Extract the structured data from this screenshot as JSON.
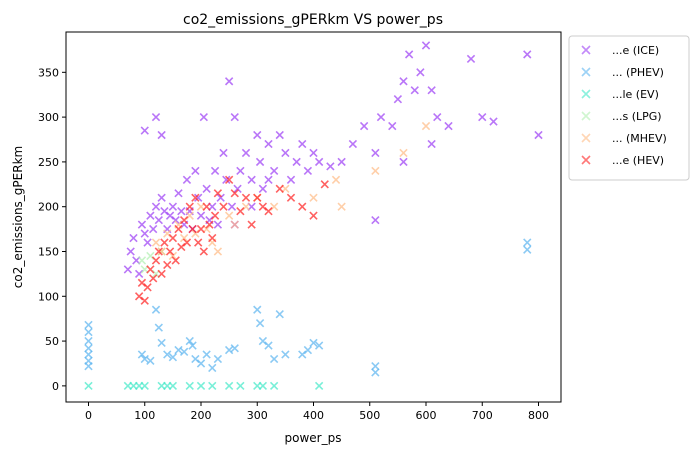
{
  "chart_data": {
    "type": "scatter",
    "title": "co2_emissions_gPERkm  VS  power_ps",
    "xlabel": "power_ps",
    "ylabel": "co2_emissions_gPERkm",
    "xlim": [
      -40,
      840
    ],
    "ylim": [
      -18,
      395
    ],
    "xticks": [
      0,
      100,
      200,
      300,
      400,
      500,
      600,
      700,
      800
    ],
    "yticks": [
      0,
      50,
      100,
      150,
      200,
      250,
      300,
      350
    ],
    "grid": false,
    "legend_position": "outside-right",
    "marker": "x",
    "series": [
      {
        "name": "...e (ICE)",
        "color": "#9b3cf5",
        "points": [
          [
            70,
            130
          ],
          [
            75,
            150
          ],
          [
            80,
            165
          ],
          [
            85,
            140
          ],
          [
            90,
            125
          ],
          [
            95,
            180
          ],
          [
            100,
            170
          ],
          [
            105,
            160
          ],
          [
            110,
            190
          ],
          [
            115,
            175
          ],
          [
            120,
            200
          ],
          [
            125,
            185
          ],
          [
            130,
            210
          ],
          [
            135,
            195
          ],
          [
            140,
            175
          ],
          [
            145,
            190
          ],
          [
            150,
            200
          ],
          [
            155,
            185
          ],
          [
            160,
            215
          ],
          [
            165,
            195
          ],
          [
            170,
            180
          ],
          [
            175,
            230
          ],
          [
            180,
            195
          ],
          [
            185,
            175
          ],
          [
            190,
            240
          ],
          [
            195,
            210
          ],
          [
            200,
            190
          ],
          [
            205,
            300
          ],
          [
            210,
            220
          ],
          [
            215,
            185
          ],
          [
            220,
            200
          ],
          [
            225,
            240
          ],
          [
            230,
            180
          ],
          [
            235,
            210
          ],
          [
            240,
            260
          ],
          [
            245,
            230
          ],
          [
            250,
            340
          ],
          [
            255,
            200
          ],
          [
            260,
            180
          ],
          [
            265,
            220
          ],
          [
            270,
            240
          ],
          [
            280,
            260
          ],
          [
            290,
            230
          ],
          [
            300,
            280
          ],
          [
            305,
            250
          ],
          [
            310,
            220
          ],
          [
            320,
            270
          ],
          [
            330,
            240
          ],
          [
            340,
            280
          ],
          [
            350,
            260
          ],
          [
            360,
            230
          ],
          [
            370,
            250
          ],
          [
            380,
            270
          ],
          [
            390,
            240
          ],
          [
            400,
            260
          ],
          [
            410,
            250
          ],
          [
            430,
            245
          ],
          [
            450,
            250
          ],
          [
            470,
            270
          ],
          [
            490,
            290
          ],
          [
            510,
            260
          ],
          [
            510,
            185
          ],
          [
            520,
            300
          ],
          [
            540,
            290
          ],
          [
            550,
            320
          ],
          [
            560,
            340
          ],
          [
            570,
            370
          ],
          [
            580,
            330
          ],
          [
            590,
            350
          ],
          [
            600,
            380
          ],
          [
            610,
            330
          ],
          [
            620,
            300
          ],
          [
            640,
            290
          ],
          [
            680,
            365
          ],
          [
            700,
            300
          ],
          [
            720,
            295
          ],
          [
            780,
            370
          ],
          [
            800,
            280
          ],
          [
            100,
            285
          ],
          [
            130,
            280
          ],
          [
            120,
            300
          ],
          [
            560,
            250
          ],
          [
            610,
            270
          ],
          [
            290,
            200
          ],
          [
            320,
            230
          ],
          [
            260,
            300
          ]
        ]
      },
      {
        "name": "... (PHEV)",
        "color": "#5ab4f0",
        "points": [
          [
            0,
            68
          ],
          [
            0,
            60
          ],
          [
            0,
            50
          ],
          [
            0,
            42
          ],
          [
            0,
            35
          ],
          [
            0,
            28
          ],
          [
            0,
            22
          ],
          [
            95,
            35
          ],
          [
            100,
            30
          ],
          [
            110,
            28
          ],
          [
            120,
            85
          ],
          [
            125,
            65
          ],
          [
            130,
            48
          ],
          [
            140,
            35
          ],
          [
            150,
            32
          ],
          [
            160,
            40
          ],
          [
            170,
            38
          ],
          [
            180,
            50
          ],
          [
            185,
            45
          ],
          [
            190,
            30
          ],
          [
            200,
            25
          ],
          [
            210,
            35
          ],
          [
            220,
            20
          ],
          [
            230,
            30
          ],
          [
            250,
            40
          ],
          [
            260,
            42
          ],
          [
            300,
            85
          ],
          [
            305,
            70
          ],
          [
            310,
            50
          ],
          [
            320,
            45
          ],
          [
            330,
            30
          ],
          [
            340,
            80
          ],
          [
            350,
            35
          ],
          [
            380,
            35
          ],
          [
            390,
            40
          ],
          [
            400,
            48
          ],
          [
            410,
            45
          ],
          [
            510,
            22
          ],
          [
            510,
            15
          ],
          [
            780,
            160
          ],
          [
            780,
            152
          ]
        ]
      },
      {
        "name": "...le (EV)",
        "color": "#40e8c8",
        "points": [
          [
            0,
            0
          ],
          [
            70,
            0
          ],
          [
            80,
            0
          ],
          [
            90,
            0
          ],
          [
            100,
            0
          ],
          [
            130,
            0
          ],
          [
            140,
            0
          ],
          [
            150,
            0
          ],
          [
            180,
            0
          ],
          [
            200,
            0
          ],
          [
            220,
            0
          ],
          [
            250,
            0
          ],
          [
            270,
            0
          ],
          [
            300,
            0
          ],
          [
            310,
            0
          ],
          [
            330,
            0
          ],
          [
            410,
            0
          ]
        ]
      },
      {
        "name": "...s (LPG)",
        "color": "#b0f0b0",
        "points": [
          [
            95,
            140
          ],
          [
            100,
            130
          ],
          [
            110,
            145
          ],
          [
            120,
            125
          ],
          [
            130,
            150
          ]
        ]
      },
      {
        "name": "... (MHEV)",
        "color": "#ffba84",
        "points": [
          [
            120,
            160
          ],
          [
            130,
            150
          ],
          [
            140,
            170
          ],
          [
            150,
            145
          ],
          [
            160,
            180
          ],
          [
            170,
            165
          ],
          [
            180,
            190
          ],
          [
            190,
            170
          ],
          [
            200,
            200
          ],
          [
            210,
            175
          ],
          [
            220,
            160
          ],
          [
            230,
            150
          ],
          [
            250,
            190
          ],
          [
            260,
            180
          ],
          [
            280,
            200
          ],
          [
            300,
            210
          ],
          [
            330,
            200
          ],
          [
            350,
            220
          ],
          [
            400,
            210
          ],
          [
            440,
            230
          ],
          [
            450,
            200
          ],
          [
            510,
            240
          ],
          [
            560,
            260
          ],
          [
            600,
            290
          ]
        ]
      },
      {
        "name": "...e (HEV)",
        "color": "#ff1e1e",
        "points": [
          [
            90,
            100
          ],
          [
            95,
            115
          ],
          [
            100,
            95
          ],
          [
            105,
            110
          ],
          [
            110,
            130
          ],
          [
            115,
            120
          ],
          [
            120,
            140
          ],
          [
            125,
            150
          ],
          [
            130,
            125
          ],
          [
            135,
            160
          ],
          [
            140,
            135
          ],
          [
            145,
            150
          ],
          [
            150,
            165
          ],
          [
            155,
            140
          ],
          [
            160,
            175
          ],
          [
            165,
            155
          ],
          [
            170,
            185
          ],
          [
            175,
            160
          ],
          [
            180,
            200
          ],
          [
            185,
            175
          ],
          [
            190,
            210
          ],
          [
            195,
            160
          ],
          [
            200,
            175
          ],
          [
            205,
            150
          ],
          [
            210,
            200
          ],
          [
            215,
            180
          ],
          [
            220,
            165
          ],
          [
            225,
            190
          ],
          [
            230,
            215
          ],
          [
            240,
            200
          ],
          [
            250,
            230
          ],
          [
            260,
            215
          ],
          [
            270,
            195
          ],
          [
            280,
            210
          ],
          [
            290,
            180
          ],
          [
            300,
            210
          ],
          [
            310,
            200
          ],
          [
            320,
            195
          ],
          [
            340,
            220
          ],
          [
            360,
            210
          ],
          [
            380,
            200
          ],
          [
            400,
            190
          ],
          [
            420,
            225
          ]
        ]
      }
    ]
  }
}
